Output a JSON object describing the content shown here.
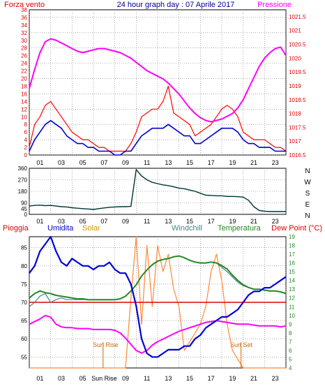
{
  "colors": {
    "wind": "#ff0000",
    "pressure": "#ff00ff",
    "gust_series": "#0000cc",
    "direction": "#003333",
    "rain": "#dd0000",
    "humidity": "#0000dd",
    "solar": "#ff8833",
    "windchill": "#448888",
    "temperature": "#228822",
    "dewpoint": "#ff00ff",
    "header_blue": "#000099",
    "grid": "#777777",
    "sun_marker": "#cc6600",
    "background": "#ffffff"
  },
  "header": {
    "left": "Forza vento",
    "center": "24 hour graph day : 07 Aprile 2017",
    "right": "Pressione"
  },
  "x_tick_labels": [
    "01",
    "03",
    "05",
    "07",
    "09",
    "11",
    "13",
    "15",
    "17",
    "19",
    "21",
    "23"
  ],
  "x_tick_labels_bottom": [
    "01",
    "03",
    "05",
    "Sun Rise",
    "09",
    "11",
    "13",
    "15",
    "17",
    "19",
    "21",
    "23"
  ],
  "panel3_header": {
    "pioggia": "Pioggia",
    "umidita": "Umidita",
    "solar": "Solar",
    "windchill": "Windchill",
    "temperatura": "Temperatura",
    "dewpoint": "Dew Point (°C)"
  },
  "annotations": {
    "sun_rise": "Sun Rise",
    "sun_set": "Sun Set"
  },
  "chart_data": [
    {
      "type": "line",
      "title": "24 hour graph day : 07 Aprile 2017",
      "ylabel": "Forza vento",
      "y2label": "Pressione",
      "ylim": [
        0,
        38
      ],
      "y2lim": [
        1016.5,
        1021.75
      ],
      "y_ticks": [
        0,
        2,
        4,
        6,
        8,
        10,
        12,
        14,
        16,
        18,
        20,
        22,
        24,
        26,
        28,
        30,
        32,
        34,
        36,
        38
      ],
      "y2_ticks": [
        1016.5,
        1017,
        1017.5,
        1018,
        1018.5,
        1019,
        1019.5,
        1020,
        1020.5,
        1021,
        1021.5
      ],
      "x": [
        0,
        0.5,
        1,
        1.5,
        2,
        2.5,
        3,
        3.5,
        4,
        4.5,
        5,
        5.5,
        6,
        6.5,
        7,
        7.5,
        8,
        8.5,
        9,
        9.5,
        10,
        10.5,
        11,
        11.5,
        12,
        12.5,
        13,
        13.5,
        14,
        14.5,
        15,
        15.5,
        16,
        16.5,
        17,
        17.5,
        18,
        18.5,
        19,
        19.5,
        20,
        20.5,
        21,
        21.5,
        22,
        22.5,
        23,
        23.5,
        24
      ],
      "series": [
        {
          "values": [
            2,
            8,
            10,
            13,
            14,
            12,
            10,
            8,
            6,
            5,
            4,
            4,
            3,
            2,
            2,
            1,
            1,
            1,
            1,
            3,
            6,
            10,
            11,
            12,
            12,
            14,
            18,
            11,
            10,
            9,
            8,
            5,
            6,
            7,
            8,
            10,
            12,
            13,
            12,
            10,
            6,
            5,
            4,
            4,
            4,
            3,
            2,
            2,
            1
          ]
        },
        {
          "values": [
            1,
            4,
            6,
            8,
            9,
            8,
            7,
            5,
            4,
            3,
            3,
            2,
            2,
            1,
            1,
            1,
            0,
            0,
            1,
            1,
            3,
            5,
            6,
            7,
            7,
            7,
            8,
            7,
            6,
            5,
            5,
            3,
            3,
            4,
            5,
            6,
            7,
            7,
            7,
            6,
            4,
            3,
            3,
            2,
            2,
            2,
            1,
            1,
            1
          ]
        },
        {
          "values": [
            1018.9,
            1019.6,
            1020.2,
            1020.6,
            1020.7,
            1020.65,
            1020.55,
            1020.45,
            1020.35,
            1020.25,
            1020.2,
            1020.25,
            1020.3,
            1020.35,
            1020.35,
            1020.3,
            1020.25,
            1020.2,
            1020.1,
            1020.0,
            1019.85,
            1019.7,
            1019.55,
            1019.45,
            1019.35,
            1019.25,
            1019.1,
            1018.9,
            1018.7,
            1018.45,
            1018.2,
            1018.0,
            1017.85,
            1017.75,
            1017.7,
            1017.75,
            1017.8,
            1017.9,
            1018.0,
            1018.2,
            1018.5,
            1018.9,
            1019.3,
            1019.7,
            1020.0,
            1020.2,
            1020.35,
            1020.4,
            1020.1
          ]
        }
      ]
    },
    {
      "type": "line",
      "ylim": [
        0,
        360
      ],
      "y_ticks": [
        0,
        45,
        90,
        180,
        270,
        360
      ],
      "direction_labels": [
        "N",
        "W",
        "S",
        "E",
        "N"
      ],
      "x": [
        0,
        0.5,
        1,
        1.5,
        2,
        2.5,
        3,
        3.5,
        4,
        4.5,
        5,
        5.5,
        6,
        6.5,
        7,
        7.5,
        8,
        8.5,
        9,
        9.5,
        10,
        10.5,
        11,
        11.5,
        12,
        12.5,
        13,
        13.5,
        14,
        14.5,
        15,
        15.5,
        16,
        16.5,
        17,
        17.5,
        18,
        18.5,
        19,
        19.5,
        20,
        20.5,
        21,
        21.5,
        22,
        22.5,
        23,
        23.5,
        24
      ],
      "series": [
        {
          "values": [
            65,
            70,
            72,
            68,
            70,
            65,
            60,
            58,
            52,
            48,
            45,
            42,
            38,
            45,
            50,
            55,
            58,
            60,
            60,
            62,
            350,
            300,
            270,
            250,
            240,
            230,
            225,
            215,
            205,
            200,
            190,
            180,
            165,
            150,
            148,
            145,
            145,
            140,
            140,
            138,
            135,
            110,
            60,
            30,
            25,
            22,
            22,
            22,
            22
          ]
        }
      ]
    },
    {
      "type": "line",
      "ylim": [
        52,
        88
      ],
      "y2lim": [
        4,
        19
      ],
      "y_ticks": [
        55,
        60,
        65,
        70,
        75,
        80,
        85
      ],
      "y2_ticks": [
        4,
        5,
        6,
        7,
        8,
        9,
        10,
        11,
        12,
        13,
        14,
        15,
        16,
        17,
        18,
        19
      ],
      "x": [
        0,
        0.5,
        1,
        1.5,
        2,
        2.5,
        3,
        3.5,
        4,
        4.5,
        5,
        5.5,
        6,
        6.5,
        7,
        7.5,
        8,
        8.5,
        9,
        9.5,
        10,
        10.5,
        11,
        11.5,
        12,
        12.5,
        13,
        13.5,
        14,
        14.5,
        15,
        15.5,
        16,
        16.5,
        17,
        17.5,
        18,
        18.5,
        19,
        19.5,
        20,
        20.5,
        21,
        21.5,
        22,
        22.5,
        23,
        23.5,
        24
      ],
      "series": [
        {
          "values": [
            78,
            80,
            84,
            86,
            88,
            84,
            81,
            80,
            82,
            81,
            80,
            80,
            79,
            80,
            80,
            81,
            79,
            78,
            78,
            75,
            69,
            60,
            56,
            55,
            55,
            56,
            57,
            57,
            57,
            58,
            58,
            60,
            61,
            63,
            64,
            65,
            66,
            66,
            67,
            68,
            70,
            72,
            73,
            73,
            74,
            74,
            75,
            76,
            77
          ]
        },
        {
          "values": [
            12,
            12.5,
            12.8,
            12.6,
            12.5,
            12.3,
            12.2,
            12.1,
            12.0,
            11.9,
            11.9,
            11.8,
            11.8,
            11.8,
            11.8,
            11.8,
            11.8,
            11.9,
            12.2,
            12.8,
            13.5,
            14.5,
            15.2,
            15.8,
            16.2,
            16.4,
            16.5,
            16.7,
            16.8,
            16.6,
            16.3,
            16.1,
            16.0,
            16.0,
            16.1,
            16.0,
            15.7,
            15.3,
            14.6,
            14.0,
            13.5,
            13.2,
            13.0,
            13.0,
            12.9,
            12.8,
            12.8,
            12.7,
            12.5
          ]
        },
        {
          "values": [
            11,
            11.5,
            12.2,
            12.5,
            11.5,
            11.8,
            12,
            11.8,
            11.8,
            11.8,
            11.8,
            11.8,
            11.8,
            11.8,
            11.8,
            11.8,
            11.8,
            11.9,
            12.2,
            12.8,
            13.5,
            14.5,
            15.2,
            15.8,
            16.2,
            16.4,
            16.5,
            16.7,
            16.8,
            16.6,
            16.3,
            16.1,
            16.0,
            16.0,
            16.1,
            16.0,
            15.5,
            15.0,
            14.4,
            13.8,
            13.4,
            13.2,
            13.0,
            13.0,
            12.9,
            12.8,
            12.8,
            12.7,
            12.5
          ]
        },
        {
          "values": [
            9,
            9.3,
            9.6,
            10.0,
            9.8,
            9.0,
            8.7,
            8.6,
            8.6,
            8.5,
            8.5,
            8.5,
            8.4,
            8.4,
            8.4,
            8.4,
            8.3,
            8.0,
            7.4,
            6.7,
            6.0,
            5.7,
            6.0,
            6.6,
            7.0,
            7.3,
            7.6,
            7.9,
            8.2,
            8.4,
            8.6,
            8.8,
            9.0,
            9.2,
            9.3,
            9.4,
            9.3,
            9.2,
            9.1,
            9.0,
            9.0,
            9.0,
            8.9,
            8.8,
            8.8,
            8.8,
            8.8,
            8.7,
            8.8
          ]
        },
        {
          "values": [
            4,
            4,
            4,
            4,
            4,
            4,
            4,
            4,
            4,
            4,
            4,
            4,
            4,
            4,
            4,
            4,
            4,
            4,
            4,
            12,
            19,
            9,
            18,
            11,
            18,
            15,
            17,
            13,
            11,
            6,
            7,
            8,
            9,
            11,
            15,
            17,
            14,
            9,
            6,
            5,
            4,
            4,
            4,
            4,
            4,
            4,
            4,
            4,
            4
          ]
        },
        {
          "values": [
            70,
            70,
            70,
            70,
            70,
            70,
            70,
            70,
            70,
            70,
            70,
            70,
            70,
            70,
            70,
            70,
            70,
            70,
            70,
            70,
            70,
            70,
            70,
            70,
            70,
            70,
            70,
            70,
            70,
            70,
            70,
            70,
            70,
            70,
            70,
            70,
            70,
            70,
            70,
            70,
            70,
            70,
            70,
            70,
            70,
            70,
            70,
            70,
            70
          ]
        }
      ]
    }
  ]
}
